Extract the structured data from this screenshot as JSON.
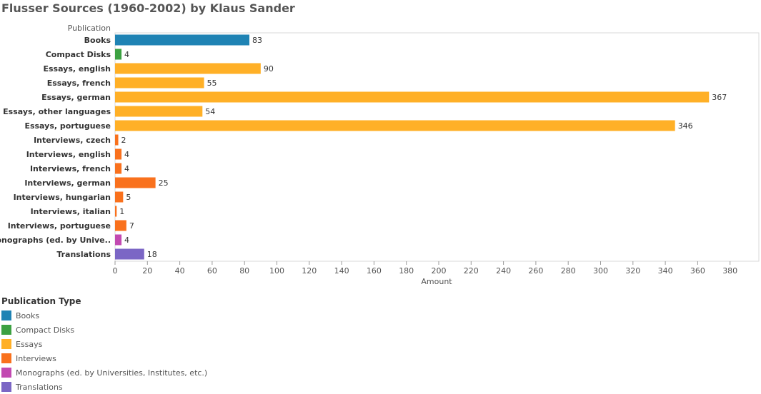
{
  "chart_data": {
    "type": "bar",
    "orientation": "horizontal",
    "title": "Flusser Sources (1960-2002) by Klaus Sander",
    "ylabel": "Publication",
    "xlabel": "Amount",
    "xlim": [
      0,
      385
    ],
    "xticks": [
      0,
      20,
      40,
      60,
      80,
      100,
      120,
      140,
      160,
      180,
      200,
      220,
      240,
      260,
      280,
      300,
      320,
      340,
      360,
      380
    ],
    "categories": [
      "Books",
      "Compact Disks",
      "Essays, english",
      "Essays, french",
      "Essays, german",
      "Essays, other languages",
      "Essays, portuguese",
      "Interviews, czech",
      "Interviews, english",
      "Interviews, french",
      "Interviews, german",
      "Interviews, hungarian",
      "Interviews, italian",
      "Interviews, portuguese",
      "Monographs (ed. by Unive..",
      "Translations"
    ],
    "values": [
      83,
      4,
      90,
      55,
      367,
      54,
      346,
      2,
      4,
      4,
      25,
      5,
      1,
      7,
      4,
      18
    ],
    "types": [
      "Books",
      "Compact Disks",
      "Essays",
      "Essays",
      "Essays",
      "Essays",
      "Essays",
      "Interviews",
      "Interviews",
      "Interviews",
      "Interviews",
      "Interviews",
      "Interviews",
      "Interviews",
      "Monographs (ed. by Universities, Institutes, etc.)",
      "Translations"
    ],
    "legend": {
      "title": "Publication Type",
      "position": "bottom-left",
      "items": [
        {
          "label": "Books",
          "color": "#1f83b4"
        },
        {
          "label": "Compact Disks",
          "color": "#3ca142"
        },
        {
          "label": "Essays",
          "color": "#ffb027"
        },
        {
          "label": "Interviews",
          "color": "#f9711d"
        },
        {
          "label": "Monographs (ed. by Universities, Institutes, etc.)",
          "color": "#c249b1"
        },
        {
          "label": "Translations",
          "color": "#7b66c5"
        }
      ]
    },
    "grid": false
  }
}
